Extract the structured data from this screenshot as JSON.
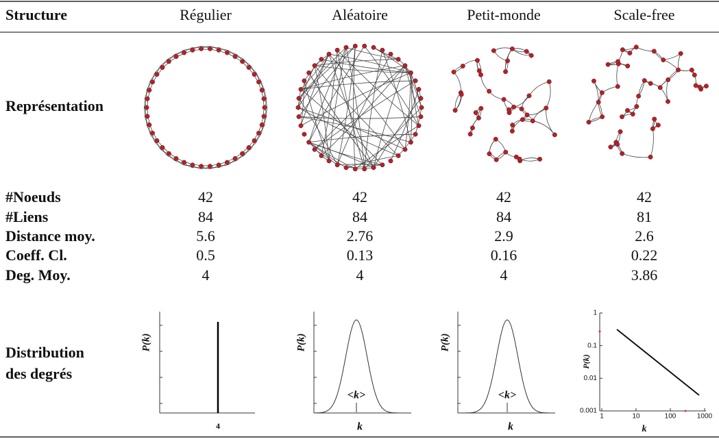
{
  "table": {
    "header": [
      "Structure",
      "Régulier",
      "Aléatoire",
      "Petit-monde",
      "Scale-free"
    ],
    "representation_label": "Représentation",
    "rows": [
      {
        "label": "#Noeuds",
        "cells": [
          "42",
          "42",
          "42",
          "42"
        ]
      },
      {
        "label": "#Liens",
        "cells": [
          "84",
          "84",
          "84",
          "81"
        ]
      },
      {
        "label": "Distance moy.",
        "cells": [
          "5.6",
          "2.76",
          "2.9",
          "2.6"
        ]
      },
      {
        "label": "Coeff. Cl.",
        "cells": [
          "0.5",
          "0.13",
          "0.16",
          "0.22"
        ]
      },
      {
        "label": "Deg. Moy.",
        "cells": [
          "4",
          "4",
          "4",
          "3.86"
        ]
      }
    ],
    "distribution_label": [
      "Distribution",
      "des degrés"
    ]
  },
  "plots": [
    {
      "ylabel": "P(k)",
      "xlabel": "4"
    },
    {
      "ylabel": "P(k)",
      "mean": "<k>",
      "xlabel": "k"
    },
    {
      "ylabel": "P(k)",
      "mean": "<k>",
      "xlabel": "k"
    },
    {
      "ylabel": "P(k)",
      "xlabel": "k",
      "yticks": [
        "1",
        "0.1",
        "0.01",
        "0.001"
      ],
      "xticks": [
        "1",
        "10",
        "100",
        "1000"
      ]
    }
  ]
}
